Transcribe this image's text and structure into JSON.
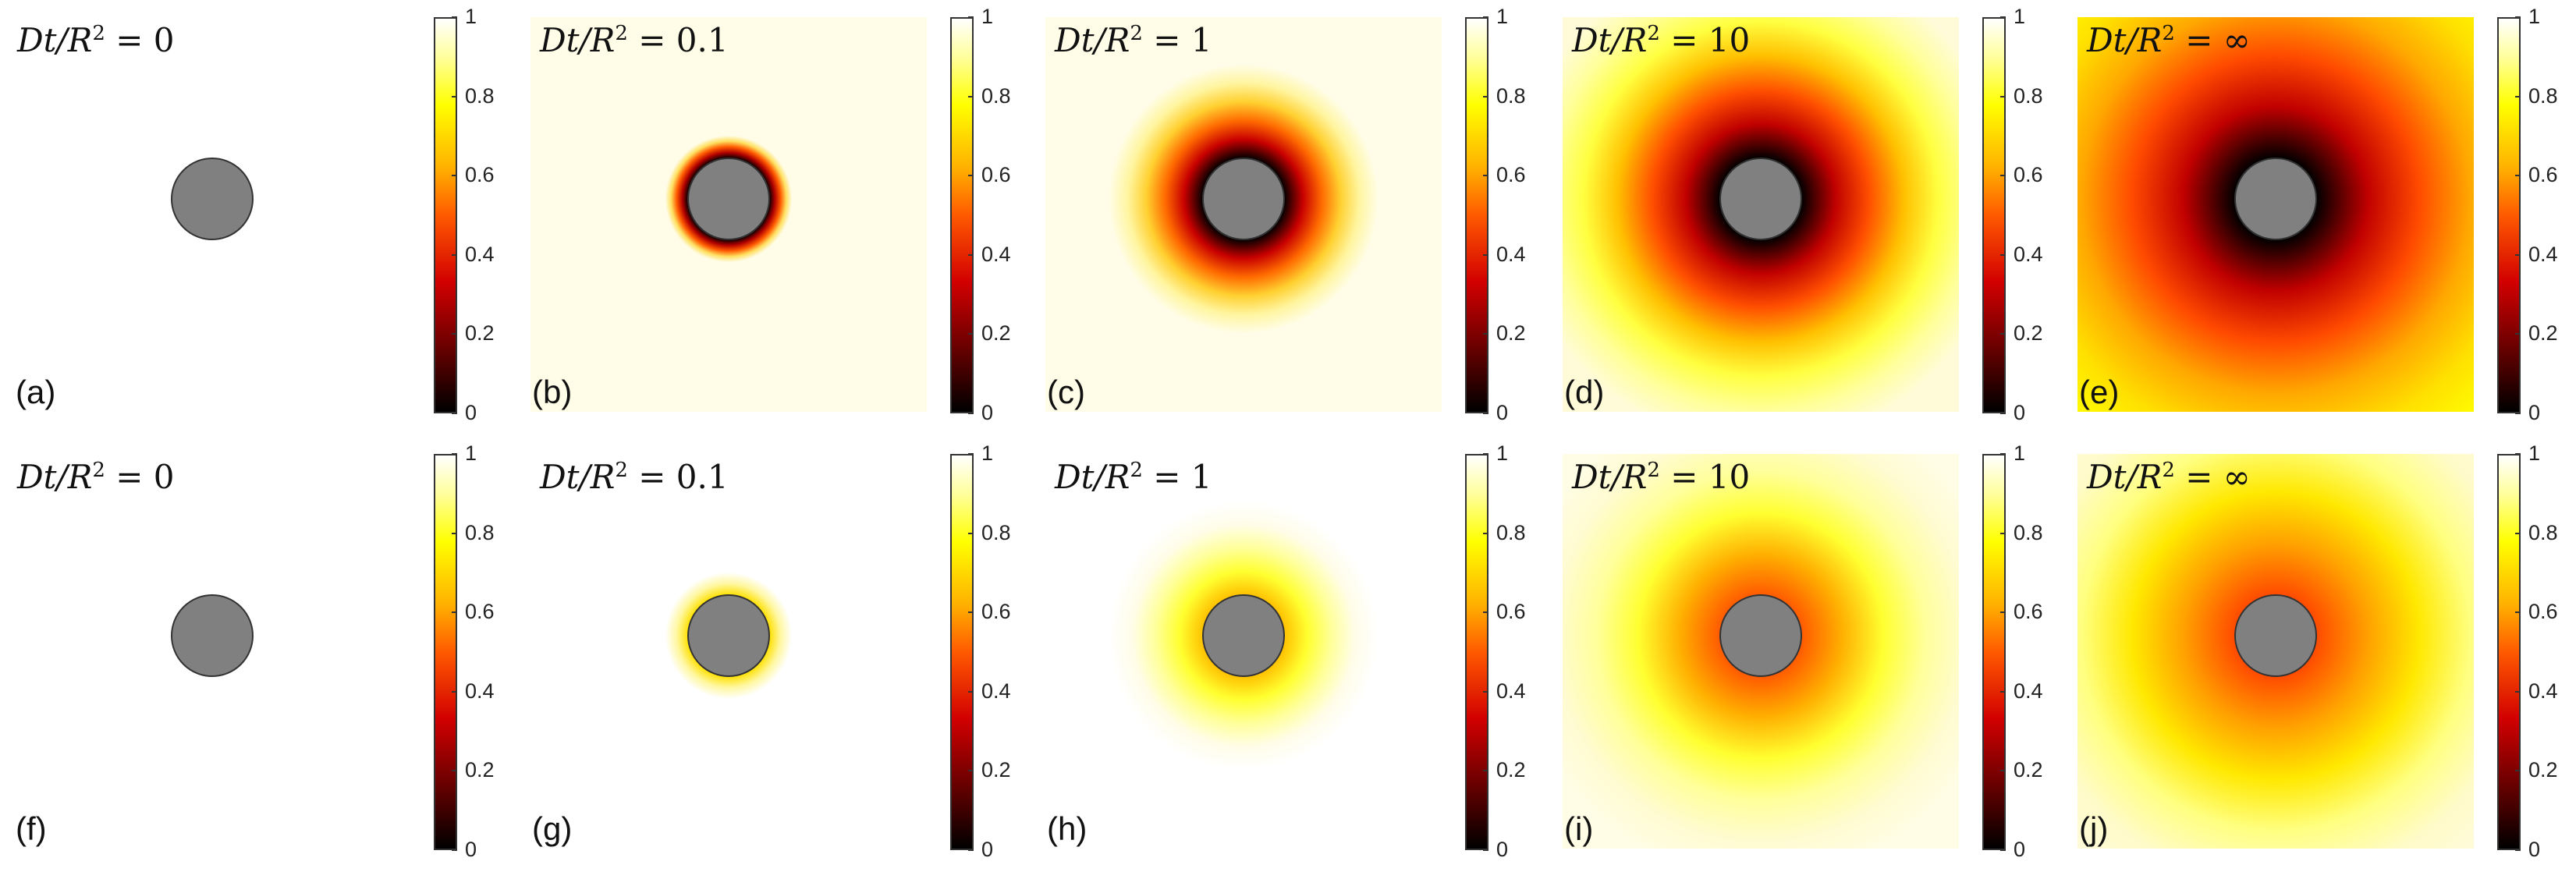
{
  "chart_data": {
    "type": "heatmap",
    "colormap": "hot",
    "colorbar_ticks": [
      "0",
      "0.2",
      "0.4",
      "0.6",
      "0.8",
      "1"
    ],
    "colorbar_range": [
      0,
      1
    ],
    "rows": [
      {
        "panels": [
          {
            "label": "(a)",
            "title_prefix": "Dt/R",
            "title_sup": "2",
            "title_suffix": " = 0",
            "profile": "none",
            "colors": [
              "#ffffff"
            ]
          },
          {
            "label": "(b)",
            "title_prefix": "Dt/R",
            "title_sup": "2",
            "title_suffix": " = 0.1",
            "profile": "sharp",
            "colors": [
              "#000000",
              "#b00000",
              "#ff5a00",
              "#ffe060",
              "#fffde8"
            ]
          },
          {
            "label": "(c)",
            "title_prefix": "Dt/R",
            "title_sup": "2",
            "title_suffix": " = 1",
            "profile": "medium",
            "colors": [
              "#000000",
              "#c80000",
              "#ff6a00",
              "#ffd030",
              "#fff5a0",
              "#fffde8"
            ]
          },
          {
            "label": "(d)",
            "title_prefix": "Dt/R",
            "title_sup": "2",
            "title_suffix": " = 10",
            "profile": "wide",
            "colors": [
              "#000000",
              "#c00000",
              "#ff5000",
              "#ffc000",
              "#ffff40",
              "#ffff9a",
              "#fffbd8"
            ]
          },
          {
            "label": "(e)",
            "title_prefix": "Dt/R",
            "title_sup": "2",
            "title_suffix": " = ∞",
            "profile": "full",
            "colors": [
              "#000000",
              "#c00000",
              "#ff4a00",
              "#ffa800",
              "#ffe000",
              "#ffff00"
            ]
          }
        ]
      },
      {
        "panels": [
          {
            "label": "(f)",
            "title_prefix": "Dt/R",
            "title_sup": "2",
            "title_suffix": " = 0",
            "profile": "none",
            "colors": [
              "#ffffff"
            ]
          },
          {
            "label": "(g)",
            "title_prefix": "Dt/R",
            "title_sup": "2",
            "title_suffix": " = 0.1",
            "profile": "sharp",
            "colors": [
              "#ffe000",
              "#fff7a0",
              "#ffffff"
            ]
          },
          {
            "label": "(h)",
            "title_prefix": "Dt/R",
            "title_sup": "2",
            "title_suffix": " = 1",
            "profile": "medium",
            "colors": [
              "#ffc000",
              "#ffff30",
              "#ffff9a",
              "#fffde8",
              "#ffffff"
            ]
          },
          {
            "label": "(i)",
            "title_prefix": "Dt/R",
            "title_sup": "2",
            "title_suffix": " = 10",
            "profile": "wide",
            "colors": [
              "#ff5a00",
              "#ffb000",
              "#ffff30",
              "#ffff9a",
              "#fffbd0",
              "#fffde6"
            ]
          },
          {
            "label": "(j)",
            "title_prefix": "Dt/R",
            "title_sup": "2",
            "title_suffix": " = ∞",
            "profile": "full",
            "colors": [
              "#ff4a00",
              "#ffa000",
              "#ffe800",
              "#ffff80",
              "#fffbc8",
              "#fffbdc"
            ]
          }
        ]
      }
    ],
    "obstacle": {
      "shape": "circle",
      "fill": "#808080",
      "stroke": "#333333"
    }
  }
}
